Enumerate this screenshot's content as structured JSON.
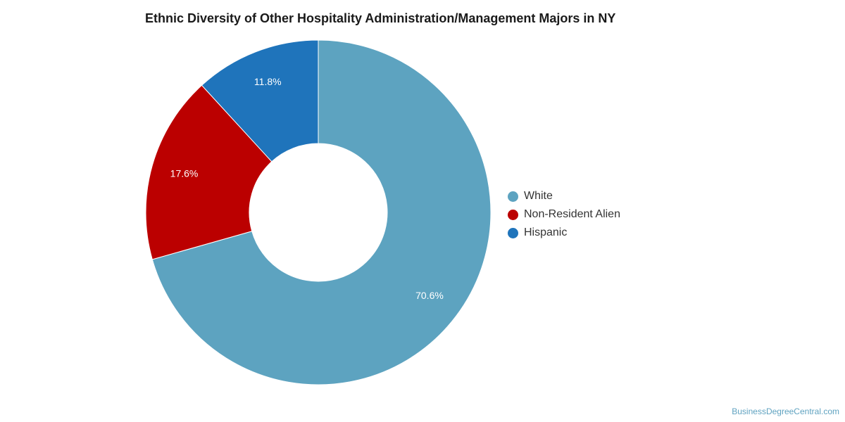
{
  "chart_data": {
    "type": "pie",
    "title": "Ethnic Diversity of Other Hospitality Administration/Management Majors in NY",
    "donut": true,
    "legend_position": "right",
    "categories": [
      "White",
      "Non-Resident Alien",
      "Hispanic"
    ],
    "values": [
      70.6,
      17.6,
      11.8
    ],
    "value_labels": [
      "70.6%",
      "17.6%",
      "11.8%"
    ],
    "colors": [
      "#5da3c0",
      "#bb0000",
      "#1f74bb"
    ]
  },
  "footer": {
    "watermark": "BusinessDegreeCentral.com"
  }
}
